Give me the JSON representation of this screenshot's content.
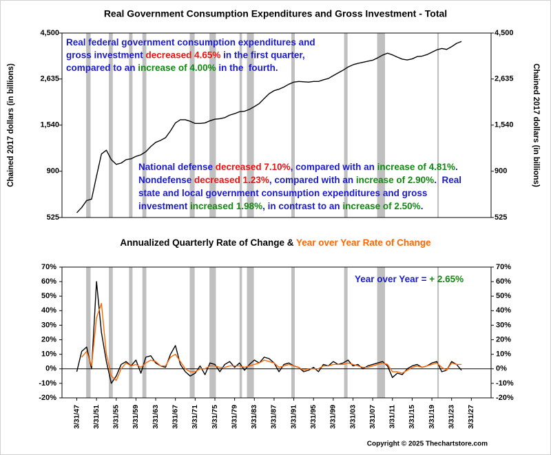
{
  "footer": "Copyright © 2025 Thechartstore.com",
  "chart_data": [
    {
      "type": "line",
      "title": "Real Government Consumption Expenditures and Gross Investment - Total",
      "ylabel": "Chained 2017 dollars (in billions)",
      "log_scale": true,
      "ylim": [
        525,
        4500
      ],
      "yticks": [
        525,
        900,
        {
          "value": 1540,
          "label": "1,540"
        },
        {
          "value": 2635,
          "label": "2,635"
        },
        {
          "value": 4500,
          "label": "4,500"
        }
      ],
      "xlim": [
        1944,
        2031
      ],
      "recession_color": "#c0c0c0",
      "recessions": [
        [
          1948.9,
          1949.8
        ],
        [
          1953.5,
          1954.3
        ],
        [
          1957.6,
          1958.3
        ],
        [
          1960.3,
          1961.1
        ],
        [
          1969.9,
          1970.9
        ],
        [
          1973.9,
          1975.2
        ],
        [
          1980.0,
          1980.5
        ],
        [
          1981.5,
          1982.9
        ],
        [
          1990.5,
          1991.2
        ],
        [
          2001.2,
          2001.9
        ],
        [
          2007.9,
          2009.5
        ],
        [
          2020.1,
          2020.4
        ]
      ],
      "x": [
        1947,
        1948,
        1949,
        1950,
        1951,
        1952,
        1953,
        1954,
        1955,
        1956,
        1957,
        1958,
        1959,
        1960,
        1961,
        1962,
        1963,
        1964,
        1965,
        1966,
        1967,
        1968,
        1969,
        1970,
        1971,
        1972,
        1973,
        1974,
        1975,
        1976,
        1977,
        1978,
        1979,
        1980,
        1981,
        1982,
        1983,
        1984,
        1985,
        1986,
        1987,
        1988,
        1989,
        1990,
        1991,
        1992,
        1993,
        1994,
        1995,
        1996,
        1997,
        1998,
        1999,
        2000,
        2001,
        2002,
        2003,
        2004,
        2005,
        2006,
        2007,
        2008,
        2009,
        2010,
        2011,
        2012,
        2013,
        2014,
        2015,
        2016,
        2017,
        2018,
        2019,
        2020,
        2021,
        2022,
        2023,
        2024,
        2025
      ],
      "series": [
        {
          "color": "#000000",
          "values": [
            555,
            590,
            640,
            650,
            850,
            1100,
            1150,
            1030,
            975,
            990,
            1030,
            1040,
            1070,
            1090,
            1130,
            1200,
            1260,
            1290,
            1330,
            1440,
            1580,
            1640,
            1640,
            1610,
            1570,
            1570,
            1580,
            1620,
            1650,
            1660,
            1680,
            1730,
            1760,
            1800,
            1810,
            1850,
            1910,
            1980,
            2100,
            2220,
            2300,
            2340,
            2400,
            2480,
            2540,
            2560,
            2550,
            2540,
            2560,
            2560,
            2610,
            2650,
            2740,
            2830,
            2920,
            3030,
            3110,
            3160,
            3200,
            3240,
            3280,
            3370,
            3480,
            3560,
            3490,
            3400,
            3320,
            3290,
            3330,
            3420,
            3440,
            3500,
            3600,
            3700,
            3760,
            3720,
            3840,
            3990,
            4080
          ]
        }
      ],
      "annotations": [
        {
          "lines": [
            [
              {
                "text": "Real federal government consumption expenditures and",
                "color": "#1a1acc"
              }
            ],
            [
              {
                "text": "gross investment ",
                "color": "#1a1acc"
              },
              {
                "text": "decreased 4.65%",
                "color": "#ee1111"
              },
              {
                "text": " in the first quarter,",
                "color": "#1a1acc"
              }
            ],
            [
              {
                "text": "compared to an ",
                "color": "#1a1acc"
              },
              {
                "text": "increase of 4.00%",
                "color": "#118811"
              },
              {
                "text": " in the  fourth.",
                "color": "#1a1acc"
              }
            ]
          ]
        },
        {
          "lines": [
            [
              {
                "text": "National defense ",
                "color": "#1a1acc"
              },
              {
                "text": "decreased 7.10%",
                "color": "#ee1111"
              },
              {
                "text": ", compared with an ",
                "color": "#1a1acc"
              },
              {
                "text": "increase of 4.81%",
                "color": "#118811"
              },
              {
                "text": ".",
                "color": "#1a1acc"
              }
            ],
            [
              {
                "text": "Nondefense ",
                "color": "#1a1acc"
              },
              {
                "text": "decreased 1.23%",
                "color": "#ee1111"
              },
              {
                "text": ", compared with an ",
                "color": "#1a1acc"
              },
              {
                "text": "increase of 2.90%",
                "color": "#118811"
              },
              {
                "text": ".  Real",
                "color": "#1a1acc"
              }
            ],
            [
              {
                "text": "state and local government consumption expenditures and gross",
                "color": "#1a1acc"
              }
            ],
            [
              {
                "text": "investment ",
                "color": "#1a1acc"
              },
              {
                "text": "increased 1.98%",
                "color": "#118811"
              },
              {
                "text": ", in contrast to an ",
                "color": "#1a1acc"
              },
              {
                "text": "increase of 2.50%",
                "color": "#118811"
              },
              {
                "text": ".",
                "color": "#1a1acc"
              }
            ]
          ]
        }
      ]
    },
    {
      "type": "line",
      "title_separator": " & ",
      "ylim": [
        -20,
        70
      ],
      "yticks": [
        {
          "value": -20,
          "label": "-20%"
        },
        {
          "value": -10,
          "label": "-10%"
        },
        {
          "value": 0,
          "label": "0%"
        },
        {
          "value": 10,
          "label": "10%"
        },
        {
          "value": 20,
          "label": "20%"
        },
        {
          "value": 30,
          "label": "30%"
        },
        {
          "value": 40,
          "label": "40%"
        },
        {
          "value": 50,
          "label": "50%"
        },
        {
          "value": 60,
          "label": "60%"
        },
        {
          "value": 70,
          "label": "70%"
        }
      ],
      "xlim": [
        1944,
        2031
      ],
      "xticks": [
        {
          "value": 1947,
          "label": "3/31/47"
        },
        {
          "value": 1951,
          "label": "3/31/51"
        },
        {
          "value": 1955,
          "label": "3/31/55"
        },
        {
          "value": 1959,
          "label": "3/31/59"
        },
        {
          "value": 1963,
          "label": "3/31/63"
        },
        {
          "value": 1967,
          "label": "3/31/67"
        },
        {
          "value": 1971,
          "label": "3/31/71"
        },
        {
          "value": 1975,
          "label": "3/31/75"
        },
        {
          "value": 1979,
          "label": "3/31/79"
        },
        {
          "value": 1983,
          "label": "3/31/83"
        },
        {
          "value": 1987,
          "label": "3/31/87"
        },
        {
          "value": 1991,
          "label": "3/31/91"
        },
        {
          "value": 1995,
          "label": "3/31/95"
        },
        {
          "value": 1999,
          "label": "3/31/99"
        },
        {
          "value": 2003,
          "label": "3/31/03"
        },
        {
          "value": 2007,
          "label": "3/31/07"
        },
        {
          "value": 2011,
          "label": "3/31/11"
        },
        {
          "value": 2015,
          "label": "3/31/15"
        },
        {
          "value": 2019,
          "label": "3/31/19"
        },
        {
          "value": 2023,
          "label": "3/31/23"
        },
        {
          "value": 2027,
          "label": "3/31/27"
        }
      ],
      "recession_color": "#c0c0c0",
      "recessions": [
        [
          1948.9,
          1949.8
        ],
        [
          1953.5,
          1954.3
        ],
        [
          1957.6,
          1958.3
        ],
        [
          1960.3,
          1961.1
        ],
        [
          1969.9,
          1970.9
        ],
        [
          1973.9,
          1975.2
        ],
        [
          1980.0,
          1980.5
        ],
        [
          1981.5,
          1982.9
        ],
        [
          1990.5,
          1991.2
        ],
        [
          2001.2,
          2001.9
        ],
        [
          2007.9,
          2009.5
        ],
        [
          2020.1,
          2020.4
        ]
      ],
      "x": [
        1947,
        1948,
        1949,
        1950,
        1951,
        1952,
        1953,
        1954,
        1955,
        1956,
        1957,
        1958,
        1959,
        1960,
        1961,
        1962,
        1963,
        1964,
        1965,
        1966,
        1967,
        1968,
        1969,
        1970,
        1971,
        1972,
        1973,
        1974,
        1975,
        1976,
        1977,
        1978,
        1979,
        1980,
        1981,
        1982,
        1983,
        1984,
        1985,
        1986,
        1987,
        1988,
        1989,
        1990,
        1991,
        1992,
        1993,
        1994,
        1995,
        1996,
        1997,
        1998,
        1999,
        2000,
        2001,
        2002,
        2003,
        2004,
        2005,
        2006,
        2007,
        2008,
        2009,
        2010,
        2011,
        2012,
        2013,
        2014,
        2015,
        2016,
        2017,
        2018,
        2019,
        2020,
        2021,
        2022,
        2023,
        2024,
        2025
      ],
      "series": [
        {
          "name": "Annualized Quarterly Rate of Change",
          "color": "#000000",
          "values": [
            -2,
            12,
            15,
            0,
            60,
            25,
            5,
            -10,
            -5,
            3,
            5,
            2,
            6,
            -3,
            8,
            9,
            4,
            2,
            1,
            10,
            16,
            3,
            -2,
            -5,
            -3,
            2,
            -4,
            4,
            3,
            -2,
            3,
            5,
            1,
            4,
            -1,
            3,
            6,
            4,
            8,
            7,
            4,
            -2,
            3,
            4,
            2,
            1,
            -2,
            -1,
            1,
            -2,
            3,
            2,
            5,
            3,
            4,
            6,
            2,
            3,
            0,
            2,
            3,
            4,
            5,
            2,
            -6,
            -3,
            -4,
            0,
            2,
            3,
            1,
            2,
            4,
            5,
            -2,
            -1,
            5,
            3,
            -1
          ]
        },
        {
          "name": "Year over Year Rate of Change",
          "color": "#ff6600",
          "values": [
            null,
            8,
            12,
            2,
            35,
            45,
            10,
            -5,
            -8,
            0,
            4,
            2,
            3,
            1,
            4,
            6,
            5,
            2,
            2,
            8,
            10,
            5,
            0,
            -2,
            -2,
            0,
            0,
            2,
            2,
            1,
            1,
            2,
            2,
            2,
            1,
            2,
            3,
            4,
            6,
            5,
            4,
            1,
            2,
            3,
            2,
            1,
            -1,
            0,
            0,
            0,
            2,
            2,
            3,
            3,
            3,
            4,
            3,
            2,
            1,
            1,
            2,
            3,
            4,
            3,
            -2,
            -2,
            -3,
            -1,
            1,
            2,
            1,
            2,
            3,
            4,
            1,
            -1,
            4,
            3,
            3
          ]
        }
      ],
      "annotations": [
        {
          "lines": [
            [
              {
                "text": "Year over Year = ",
                "color": "#1a1acc"
              },
              {
                "text": "+ 2.65%",
                "color": "#118811"
              }
            ]
          ]
        }
      ]
    }
  ]
}
